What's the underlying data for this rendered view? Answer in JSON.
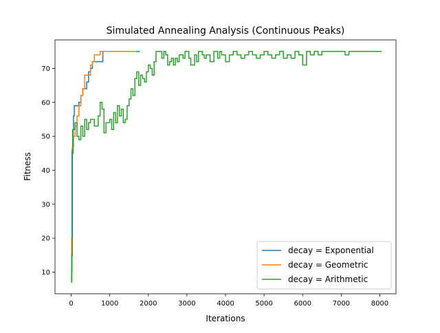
{
  "chart_data": {
    "type": "line",
    "title": "Simulated Annealing Analysis (Continuous Peaks)",
    "xlabel": "Iterations",
    "ylabel": "Fitness",
    "xlim": [
      -420,
      8420
    ],
    "ylim": [
      3.6,
      78.4
    ],
    "xticks": [
      0,
      1000,
      2000,
      3000,
      4000,
      5000,
      6000,
      7000,
      8000
    ],
    "yticks": [
      10,
      20,
      30,
      40,
      50,
      60,
      70
    ],
    "grid": false,
    "legend_position": "lower-right",
    "series": [
      {
        "name": "decay = Exponential",
        "color": "#1f77b4",
        "points": [
          [
            0,
            7
          ],
          [
            10,
            10
          ],
          [
            20,
            46
          ],
          [
            40,
            52
          ],
          [
            60,
            56
          ],
          [
            80,
            59
          ],
          [
            150,
            59
          ],
          [
            200,
            60
          ],
          [
            250,
            62
          ],
          [
            300,
            64
          ],
          [
            350,
            64
          ],
          [
            400,
            66
          ],
          [
            450,
            69
          ],
          [
            500,
            70
          ],
          [
            550,
            72
          ],
          [
            800,
            72
          ],
          [
            820,
            75
          ],
          [
            1780,
            75
          ]
        ]
      },
      {
        "name": "decay = Geometric",
        "color": "#ff7f0e",
        "points": [
          [
            0,
            7
          ],
          [
            10,
            20
          ],
          [
            30,
            47
          ],
          [
            60,
            50
          ],
          [
            100,
            53
          ],
          [
            150,
            56
          ],
          [
            200,
            59
          ],
          [
            250,
            62
          ],
          [
            300,
            64
          ],
          [
            350,
            68
          ],
          [
            450,
            68
          ],
          [
            500,
            71
          ],
          [
            550,
            72
          ],
          [
            600,
            74
          ],
          [
            700,
            74
          ],
          [
            750,
            75
          ],
          [
            1680,
            75
          ]
        ]
      },
      {
        "name": "decay = Arithmetic",
        "color": "#2ca02c",
        "points": [
          [
            0,
            7
          ],
          [
            15,
            15
          ],
          [
            30,
            45
          ],
          [
            50,
            52
          ],
          [
            100,
            54
          ],
          [
            150,
            50
          ],
          [
            200,
            49
          ],
          [
            250,
            53
          ],
          [
            300,
            50
          ],
          [
            350,
            55
          ],
          [
            400,
            52
          ],
          [
            450,
            54
          ],
          [
            500,
            55
          ],
          [
            600,
            53
          ],
          [
            700,
            56
          ],
          [
            750,
            60
          ],
          [
            800,
            58
          ],
          [
            850,
            51
          ],
          [
            900,
            54
          ],
          [
            1000,
            55
          ],
          [
            1050,
            52
          ],
          [
            1100,
            57
          ],
          [
            1150,
            54
          ],
          [
            1200,
            59
          ],
          [
            1250,
            56
          ],
          [
            1300,
            58
          ],
          [
            1350,
            54
          ],
          [
            1400,
            55
          ],
          [
            1450,
            59
          ],
          [
            1500,
            61
          ],
          [
            1550,
            64
          ],
          [
            1600,
            62
          ],
          [
            1650,
            67
          ],
          [
            1700,
            69
          ],
          [
            1750,
            65
          ],
          [
            1800,
            68
          ],
          [
            1850,
            67
          ],
          [
            1900,
            66
          ],
          [
            1950,
            69
          ],
          [
            2000,
            71
          ],
          [
            2050,
            70
          ],
          [
            2100,
            68
          ],
          [
            2150,
            72
          ],
          [
            2200,
            75
          ],
          [
            2300,
            75
          ],
          [
            2350,
            73
          ],
          [
            2400,
            75
          ],
          [
            2450,
            74
          ],
          [
            2500,
            71
          ],
          [
            2550,
            72
          ],
          [
            2600,
            73
          ],
          [
            2650,
            71
          ],
          [
            2700,
            73
          ],
          [
            2750,
            72
          ],
          [
            2800,
            74
          ],
          [
            2900,
            73
          ],
          [
            2950,
            75
          ],
          [
            3050,
            73
          ],
          [
            3100,
            71
          ],
          [
            3200,
            74
          ],
          [
            3250,
            72
          ],
          [
            3300,
            75
          ],
          [
            3400,
            74
          ],
          [
            3450,
            73
          ],
          [
            3500,
            74
          ],
          [
            3600,
            72
          ],
          [
            3700,
            75
          ],
          [
            3800,
            73
          ],
          [
            3850,
            75
          ],
          [
            3900,
            74
          ],
          [
            4000,
            72
          ],
          [
            4100,
            74
          ],
          [
            4200,
            75
          ],
          [
            4300,
            74
          ],
          [
            4400,
            73
          ],
          [
            4500,
            74
          ],
          [
            4600,
            75
          ],
          [
            4700,
            74
          ],
          [
            4800,
            73
          ],
          [
            4900,
            74
          ],
          [
            5000,
            75
          ],
          [
            5100,
            74
          ],
          [
            5200,
            73
          ],
          [
            5300,
            74
          ],
          [
            5400,
            75
          ],
          [
            5500,
            73
          ],
          [
            5600,
            74
          ],
          [
            5700,
            73
          ],
          [
            5800,
            75
          ],
          [
            5900,
            74
          ],
          [
            6000,
            71
          ],
          [
            6100,
            75
          ],
          [
            6200,
            74
          ],
          [
            6300,
            75
          ],
          [
            6400,
            74
          ],
          [
            6500,
            75
          ],
          [
            7000,
            75
          ],
          [
            7100,
            74
          ],
          [
            7200,
            75
          ],
          [
            8050,
            75
          ]
        ]
      }
    ]
  }
}
